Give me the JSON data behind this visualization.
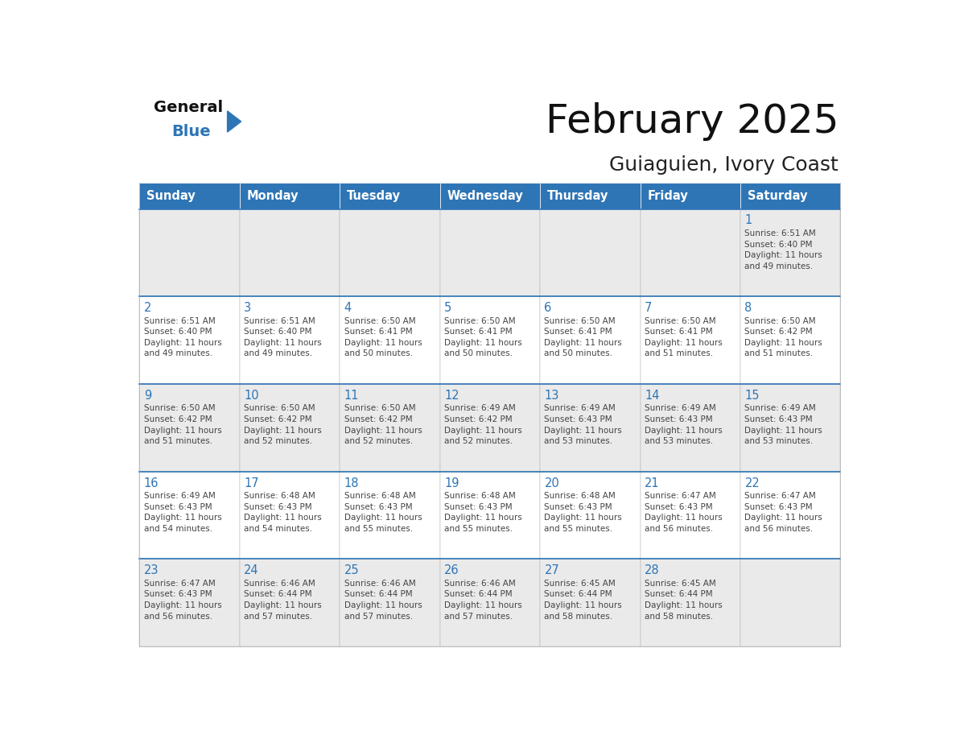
{
  "title": "February 2025",
  "subtitle": "Guiaguien, Ivory Coast",
  "header_bg": "#2E75B6",
  "header_text_color": "#FFFFFF",
  "row_bg_odd": "#EAEAEA",
  "row_bg_even": "#FFFFFF",
  "row_separator_color": "#2E75B6",
  "day_number_color": "#2E75B6",
  "text_color": "#444444",
  "border_color": "#AAAAAA",
  "days_of_week": [
    "Sunday",
    "Monday",
    "Tuesday",
    "Wednesday",
    "Thursday",
    "Friday",
    "Saturday"
  ],
  "calendar": [
    [
      {
        "day": null,
        "info": ""
      },
      {
        "day": null,
        "info": ""
      },
      {
        "day": null,
        "info": ""
      },
      {
        "day": null,
        "info": ""
      },
      {
        "day": null,
        "info": ""
      },
      {
        "day": null,
        "info": ""
      },
      {
        "day": 1,
        "info": "Sunrise: 6:51 AM\nSunset: 6:40 PM\nDaylight: 11 hours\nand 49 minutes."
      }
    ],
    [
      {
        "day": 2,
        "info": "Sunrise: 6:51 AM\nSunset: 6:40 PM\nDaylight: 11 hours\nand 49 minutes."
      },
      {
        "day": 3,
        "info": "Sunrise: 6:51 AM\nSunset: 6:40 PM\nDaylight: 11 hours\nand 49 minutes."
      },
      {
        "day": 4,
        "info": "Sunrise: 6:50 AM\nSunset: 6:41 PM\nDaylight: 11 hours\nand 50 minutes."
      },
      {
        "day": 5,
        "info": "Sunrise: 6:50 AM\nSunset: 6:41 PM\nDaylight: 11 hours\nand 50 minutes."
      },
      {
        "day": 6,
        "info": "Sunrise: 6:50 AM\nSunset: 6:41 PM\nDaylight: 11 hours\nand 50 minutes."
      },
      {
        "day": 7,
        "info": "Sunrise: 6:50 AM\nSunset: 6:41 PM\nDaylight: 11 hours\nand 51 minutes."
      },
      {
        "day": 8,
        "info": "Sunrise: 6:50 AM\nSunset: 6:42 PM\nDaylight: 11 hours\nand 51 minutes."
      }
    ],
    [
      {
        "day": 9,
        "info": "Sunrise: 6:50 AM\nSunset: 6:42 PM\nDaylight: 11 hours\nand 51 minutes."
      },
      {
        "day": 10,
        "info": "Sunrise: 6:50 AM\nSunset: 6:42 PM\nDaylight: 11 hours\nand 52 minutes."
      },
      {
        "day": 11,
        "info": "Sunrise: 6:50 AM\nSunset: 6:42 PM\nDaylight: 11 hours\nand 52 minutes."
      },
      {
        "day": 12,
        "info": "Sunrise: 6:49 AM\nSunset: 6:42 PM\nDaylight: 11 hours\nand 52 minutes."
      },
      {
        "day": 13,
        "info": "Sunrise: 6:49 AM\nSunset: 6:43 PM\nDaylight: 11 hours\nand 53 minutes."
      },
      {
        "day": 14,
        "info": "Sunrise: 6:49 AM\nSunset: 6:43 PM\nDaylight: 11 hours\nand 53 minutes."
      },
      {
        "day": 15,
        "info": "Sunrise: 6:49 AM\nSunset: 6:43 PM\nDaylight: 11 hours\nand 53 minutes."
      }
    ],
    [
      {
        "day": 16,
        "info": "Sunrise: 6:49 AM\nSunset: 6:43 PM\nDaylight: 11 hours\nand 54 minutes."
      },
      {
        "day": 17,
        "info": "Sunrise: 6:48 AM\nSunset: 6:43 PM\nDaylight: 11 hours\nand 54 minutes."
      },
      {
        "day": 18,
        "info": "Sunrise: 6:48 AM\nSunset: 6:43 PM\nDaylight: 11 hours\nand 55 minutes."
      },
      {
        "day": 19,
        "info": "Sunrise: 6:48 AM\nSunset: 6:43 PM\nDaylight: 11 hours\nand 55 minutes."
      },
      {
        "day": 20,
        "info": "Sunrise: 6:48 AM\nSunset: 6:43 PM\nDaylight: 11 hours\nand 55 minutes."
      },
      {
        "day": 21,
        "info": "Sunrise: 6:47 AM\nSunset: 6:43 PM\nDaylight: 11 hours\nand 56 minutes."
      },
      {
        "day": 22,
        "info": "Sunrise: 6:47 AM\nSunset: 6:43 PM\nDaylight: 11 hours\nand 56 minutes."
      }
    ],
    [
      {
        "day": 23,
        "info": "Sunrise: 6:47 AM\nSunset: 6:43 PM\nDaylight: 11 hours\nand 56 minutes."
      },
      {
        "day": 24,
        "info": "Sunrise: 6:46 AM\nSunset: 6:44 PM\nDaylight: 11 hours\nand 57 minutes."
      },
      {
        "day": 25,
        "info": "Sunrise: 6:46 AM\nSunset: 6:44 PM\nDaylight: 11 hours\nand 57 minutes."
      },
      {
        "day": 26,
        "info": "Sunrise: 6:46 AM\nSunset: 6:44 PM\nDaylight: 11 hours\nand 57 minutes."
      },
      {
        "day": 27,
        "info": "Sunrise: 6:45 AM\nSunset: 6:44 PM\nDaylight: 11 hours\nand 58 minutes."
      },
      {
        "day": 28,
        "info": "Sunrise: 6:45 AM\nSunset: 6:44 PM\nDaylight: 11 hours\nand 58 minutes."
      },
      {
        "day": null,
        "info": ""
      }
    ]
  ],
  "logo_general_color": "#111111",
  "logo_blue_color": "#2E75B6",
  "logo_triangle_color": "#2E75B6"
}
